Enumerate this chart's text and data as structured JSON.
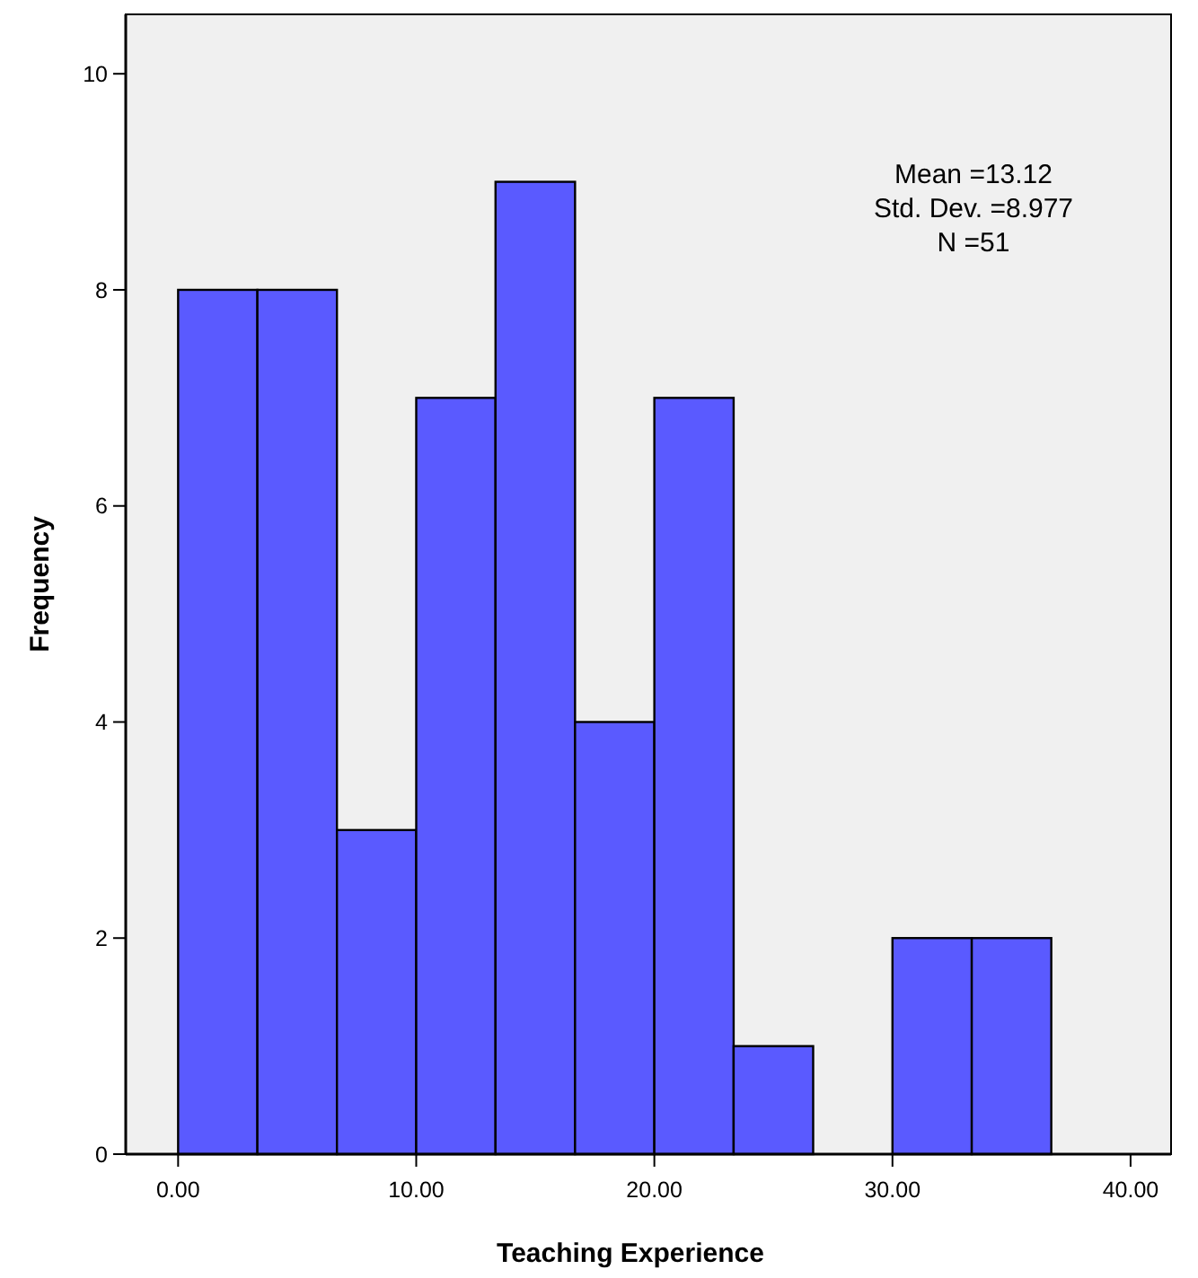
{
  "chart_data": {
    "type": "histogram",
    "xlabel": "Teaching Experience",
    "ylabel": "Frequency",
    "bins": [
      0,
      3.33,
      6.67,
      10,
      13.33,
      16.67,
      20,
      23.33,
      26.67,
      30,
      33.33,
      36.67
    ],
    "values": [
      8,
      8,
      3,
      7,
      9,
      4,
      7,
      1,
      0,
      2,
      2
    ],
    "color": "#5a5aff",
    "xlim": [
      -2.2,
      41.7
    ],
    "xticks": [
      {
        "value": 0,
        "label": "0.00"
      },
      {
        "value": 10,
        "label": "10.00"
      },
      {
        "value": 20,
        "label": "20.00"
      },
      {
        "value": 30,
        "label": "30.00"
      },
      {
        "value": 40,
        "label": "40.00"
      }
    ],
    "ylim": [
      0,
      10.55
    ],
    "yticks": [
      0,
      2,
      4,
      6,
      8,
      10
    ],
    "annotations": [
      "Mean =13.12",
      "Std. Dev. =8.977",
      "N =51"
    ]
  }
}
